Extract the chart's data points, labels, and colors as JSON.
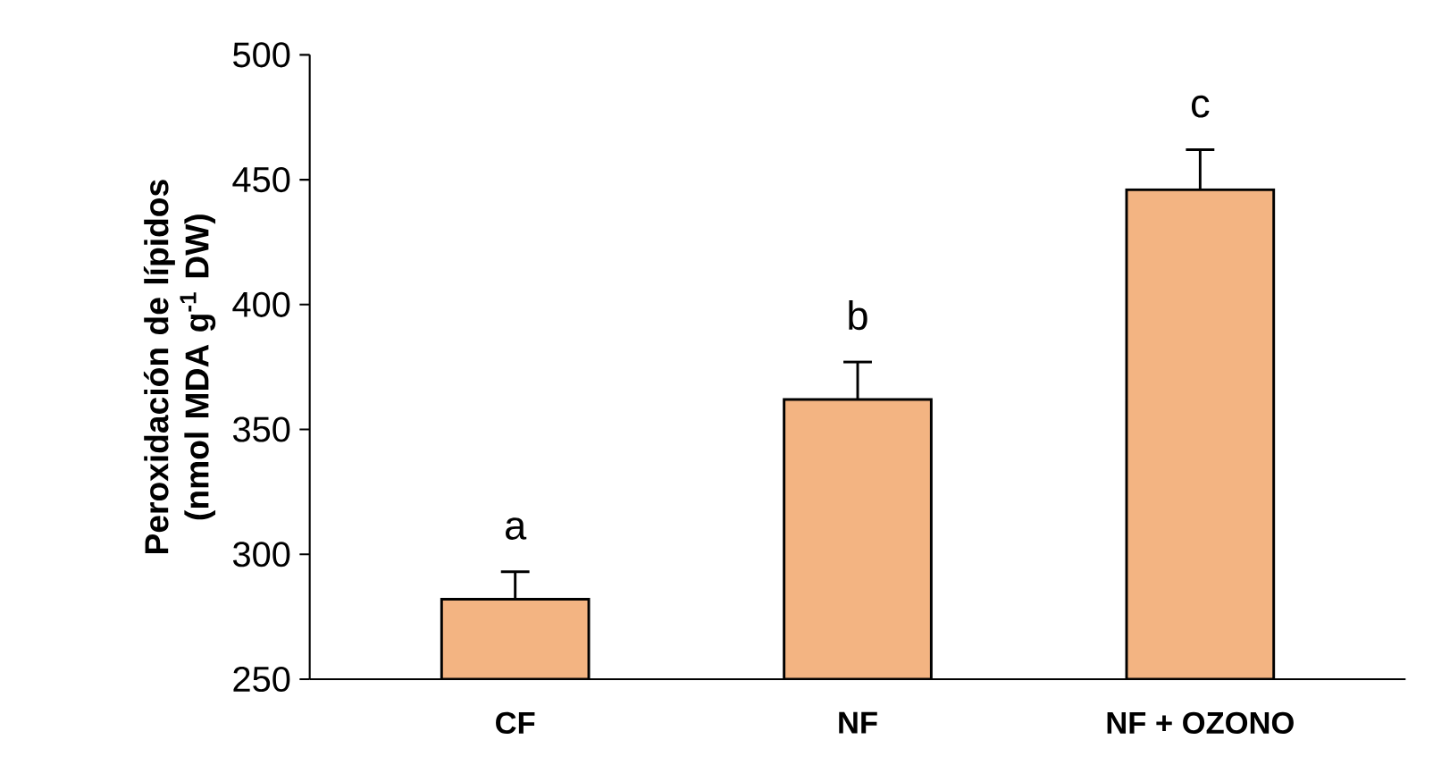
{
  "chart_data": {
    "type": "bar",
    "ylabel": "Peroxidación de lípidos (nmol MDA g$^{-1}$ DW)",
    "categories": [
      "CF",
      "NF",
      "NF + OZONO"
    ],
    "values": [
      282,
      362,
      446
    ],
    "errors": [
      11,
      15,
      16
    ],
    "color": "#f3b482",
    "ylim": [
      250,
      500
    ],
    "yticks": [
      250,
      300,
      350,
      400,
      450,
      500
    ],
    "annotations": [
      "a",
      "b",
      "c"
    ],
    "grid": false
  }
}
